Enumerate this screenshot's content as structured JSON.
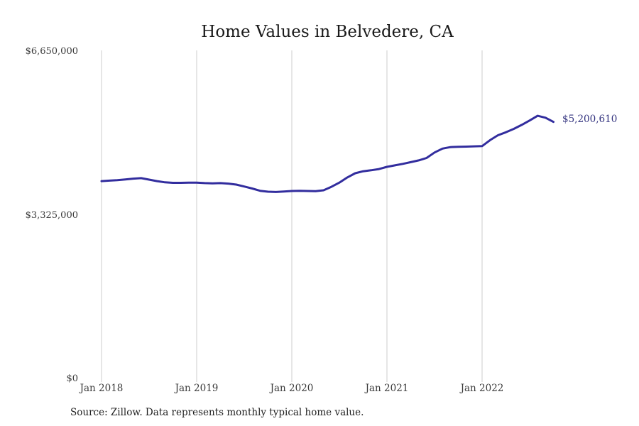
{
  "title": "Home Values in Belvedere, CA",
  "source_note": "Source: Zillow. Data represents monthly typical home value.",
  "end_label": "$5,200,610",
  "colors": {
    "background": "#ffffff",
    "line": "#322d9e",
    "grid": "#cccccc",
    "axis_text": "#3a3a3a",
    "title_text": "#1a1a1a",
    "end_label": "#32327e",
    "source_text": "#1f1f1f"
  },
  "y_axis": {
    "tick_labels": [
      "$6,650,000",
      "$3,325,000",
      "$0"
    ],
    "min": 0,
    "max": 6650000
  },
  "x_axis": {
    "tick_labels": [
      "Jan 2018",
      "Jan 2019",
      "Jan 2020",
      "Jan 2021",
      "Jan 2022"
    ]
  },
  "chart_data": {
    "type": "line",
    "title": "Home Values in Belvedere, CA",
    "xlabel": "",
    "ylabel": "",
    "ylim": [
      0,
      6650000
    ],
    "y_tick_values": [
      0,
      3325000,
      6650000
    ],
    "y_tick_labels": [
      "$0",
      "$3,325,000",
      "$6,650,000"
    ],
    "x_tick_labels": [
      "Jan 2018",
      "Jan 2019",
      "Jan 2020",
      "Jan 2021",
      "Jan 2022"
    ],
    "grid": "vertical-only",
    "legend": "none",
    "last_value_label": "$5,200,610",
    "x": [
      "2018-01",
      "2018-02",
      "2018-03",
      "2018-04",
      "2018-05",
      "2018-06",
      "2018-07",
      "2018-08",
      "2018-09",
      "2018-10",
      "2018-11",
      "2018-12",
      "2019-01",
      "2019-02",
      "2019-03",
      "2019-04",
      "2019-05",
      "2019-06",
      "2019-07",
      "2019-08",
      "2019-09",
      "2019-10",
      "2019-11",
      "2019-12",
      "2020-01",
      "2020-02",
      "2020-03",
      "2020-04",
      "2020-05",
      "2020-06",
      "2020-07",
      "2020-08",
      "2020-09",
      "2020-10",
      "2020-11",
      "2020-12",
      "2021-01",
      "2021-02",
      "2021-03",
      "2021-04",
      "2021-05",
      "2021-06",
      "2021-07",
      "2021-08",
      "2021-09",
      "2021-10",
      "2021-11",
      "2021-12",
      "2022-01",
      "2022-02",
      "2022-03",
      "2022-04",
      "2022-05",
      "2022-06",
      "2022-07",
      "2022-08",
      "2022-09",
      "2022-10"
    ],
    "series": [
      {
        "name": "Monthly typical home value",
        "values": [
          4000000,
          4010000,
          4020000,
          4035000,
          4050000,
          4060000,
          4030000,
          4000000,
          3975000,
          3965000,
          3965000,
          3970000,
          3970000,
          3960000,
          3955000,
          3960000,
          3950000,
          3930000,
          3890000,
          3850000,
          3805000,
          3785000,
          3780000,
          3790000,
          3800000,
          3805000,
          3800000,
          3795000,
          3815000,
          3885000,
          3970000,
          4075000,
          4160000,
          4200000,
          4220000,
          4245000,
          4290000,
          4320000,
          4350000,
          4385000,
          4420000,
          4470000,
          4580000,
          4660000,
          4690000,
          4695000,
          4700000,
          4705000,
          4710000,
          4830000,
          4930000,
          4990000,
          5060000,
          5140000,
          5230000,
          5325000,
          5285000,
          5200610
        ]
      }
    ]
  }
}
